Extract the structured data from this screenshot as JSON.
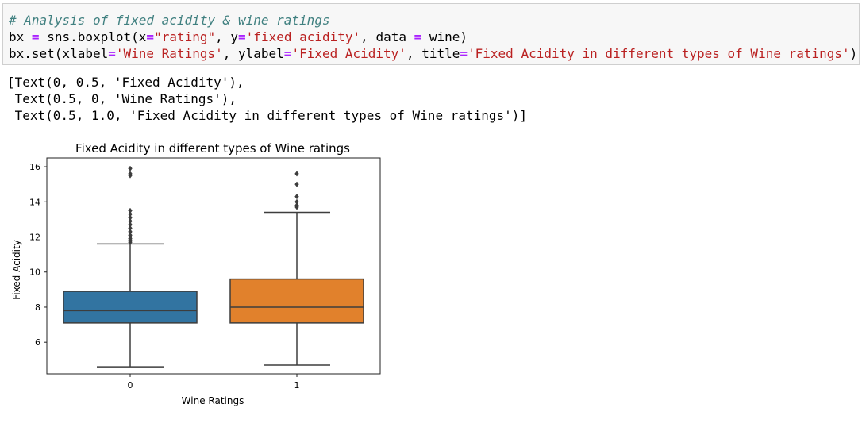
{
  "code": {
    "comment": "# Analysis of fixed acidity & wine ratings",
    "line2_var": "bx",
    "line2_eq": "=",
    "line2_call": "sns.boxplot(x",
    "line2_eq2": "=",
    "line2_x": "\"rating\"",
    "line2_y_key": ", y",
    "line2_eq3": "=",
    "line2_y": "'fixed_acidity'",
    "line2_data_key": ", data",
    "line2_eq4": "=",
    "line2_end": " wine)",
    "line3_call": "bx.set(xlabel",
    "line3_eq1": "=",
    "line3_xlabel": "'Wine Ratings'",
    "line3_ylabel_key": ", ylabel",
    "line3_eq2": "=",
    "line3_ylabel": "'Fixed Acidity'",
    "line3_title_key": ", title",
    "line3_eq3": "=",
    "line3_title": "'Fixed Acidity in different types of Wine ratings'",
    "line3_end": ")"
  },
  "output": {
    "line1": "[Text(0, 0.5, 'Fixed Acidity'),",
    "line2": " Text(0.5, 0, 'Wine Ratings'),",
    "line3": " Text(0.5, 1.0, 'Fixed Acidity in different types of Wine ratings')]"
  },
  "chart_data": {
    "type": "box",
    "title": "Fixed Acidity in different types of Wine ratings",
    "xlabel": "Wine Ratings",
    "ylabel": "Fixed Acidity",
    "categories": [
      "0",
      "1"
    ],
    "ylim": [
      4.2,
      16.5
    ],
    "yticks": [
      6,
      8,
      10,
      12,
      14,
      16
    ],
    "boxes": [
      {
        "category": "0",
        "whisker_low": 4.6,
        "q1": 7.1,
        "median": 7.8,
        "q3": 8.9,
        "whisker_high": 11.6,
        "outliers": [
          11.7,
          11.8,
          11.9,
          12.0,
          12.1,
          12.3,
          12.5,
          12.7,
          12.9,
          13.1,
          13.3,
          13.5,
          15.5,
          15.6,
          15.9
        ],
        "color": "#3274a1"
      },
      {
        "category": "1",
        "whisker_low": 4.7,
        "q1": 7.1,
        "median": 8.0,
        "q3": 9.6,
        "whisker_high": 13.4,
        "outliers": [
          13.7,
          13.8,
          14.0,
          14.3,
          15.0,
          15.6
        ],
        "color": "#e1812c"
      }
    ]
  }
}
